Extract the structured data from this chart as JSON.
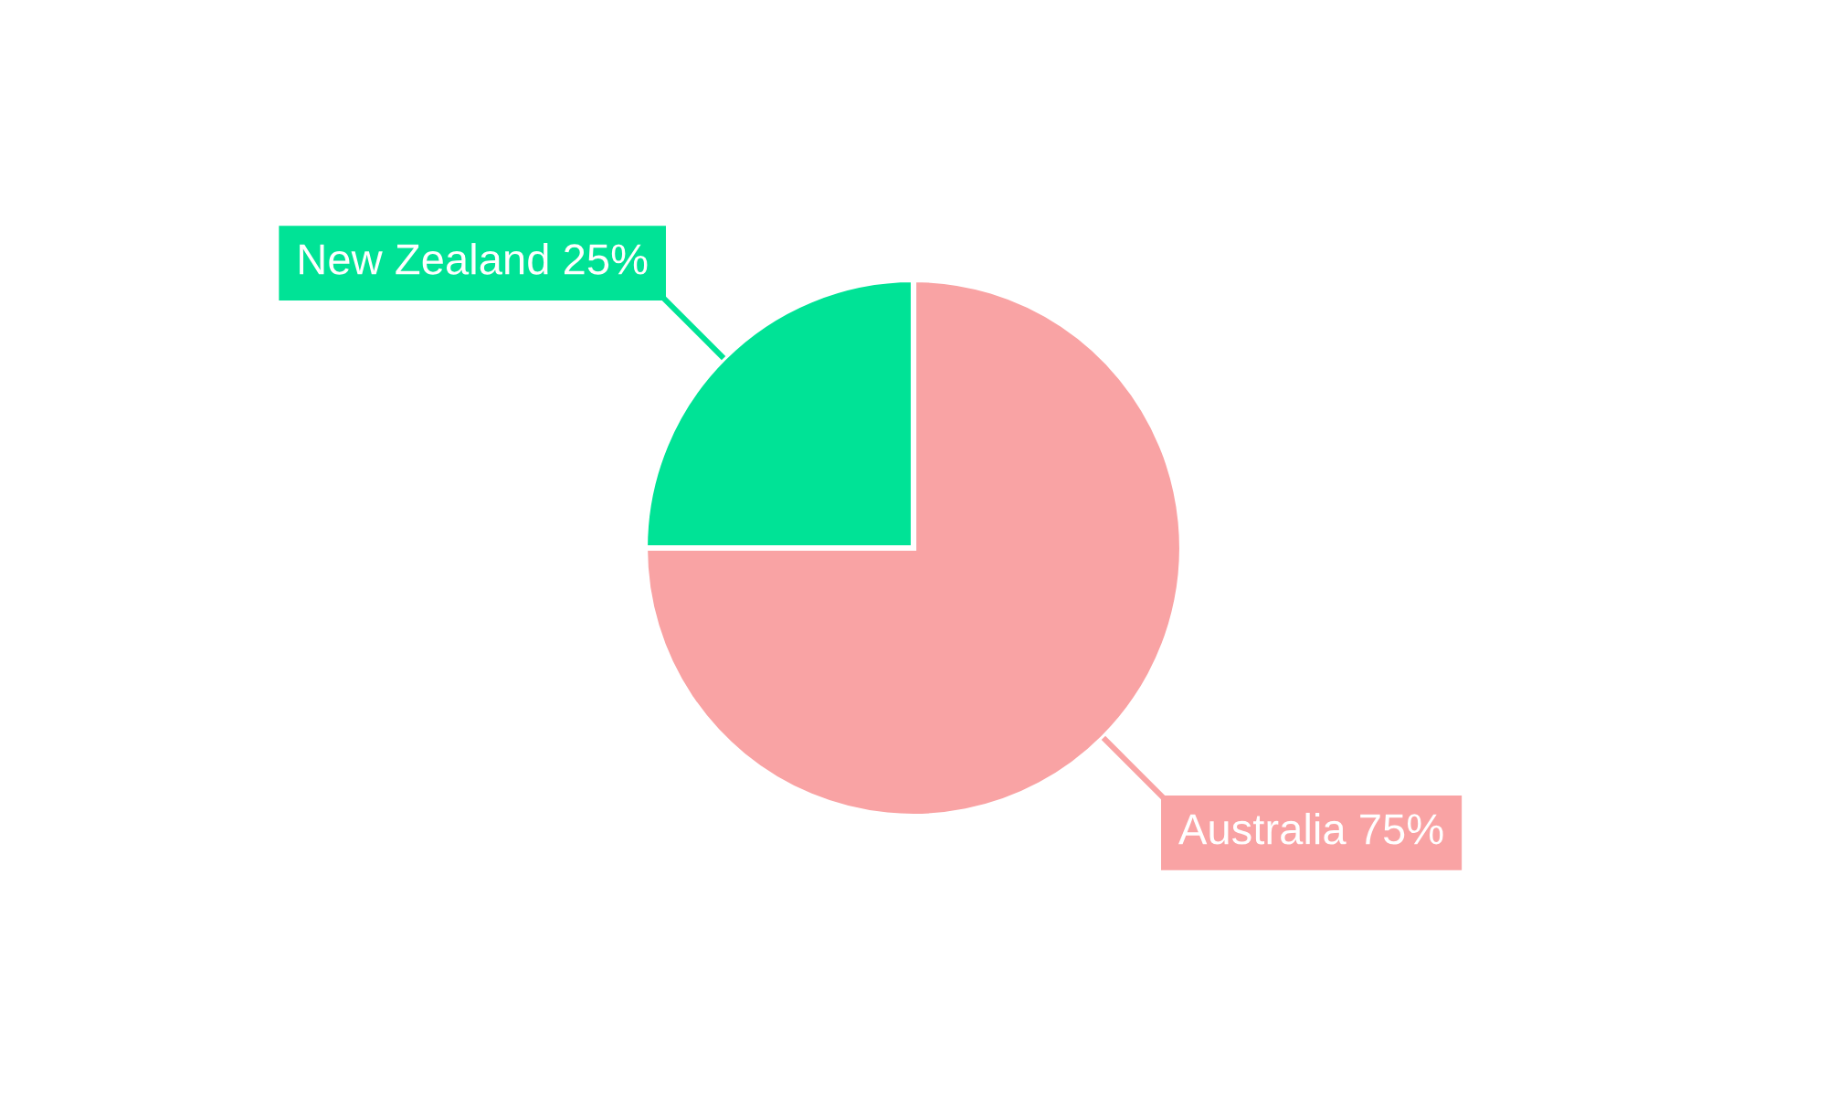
{
  "chart_data": {
    "type": "pie",
    "categories": [
      "Australia",
      "New Zealand"
    ],
    "values": [
      75,
      25
    ],
    "colors": [
      "#f9a3a4",
      "#00e396"
    ],
    "value_labels": [
      "75%",
      "25%"
    ]
  }
}
